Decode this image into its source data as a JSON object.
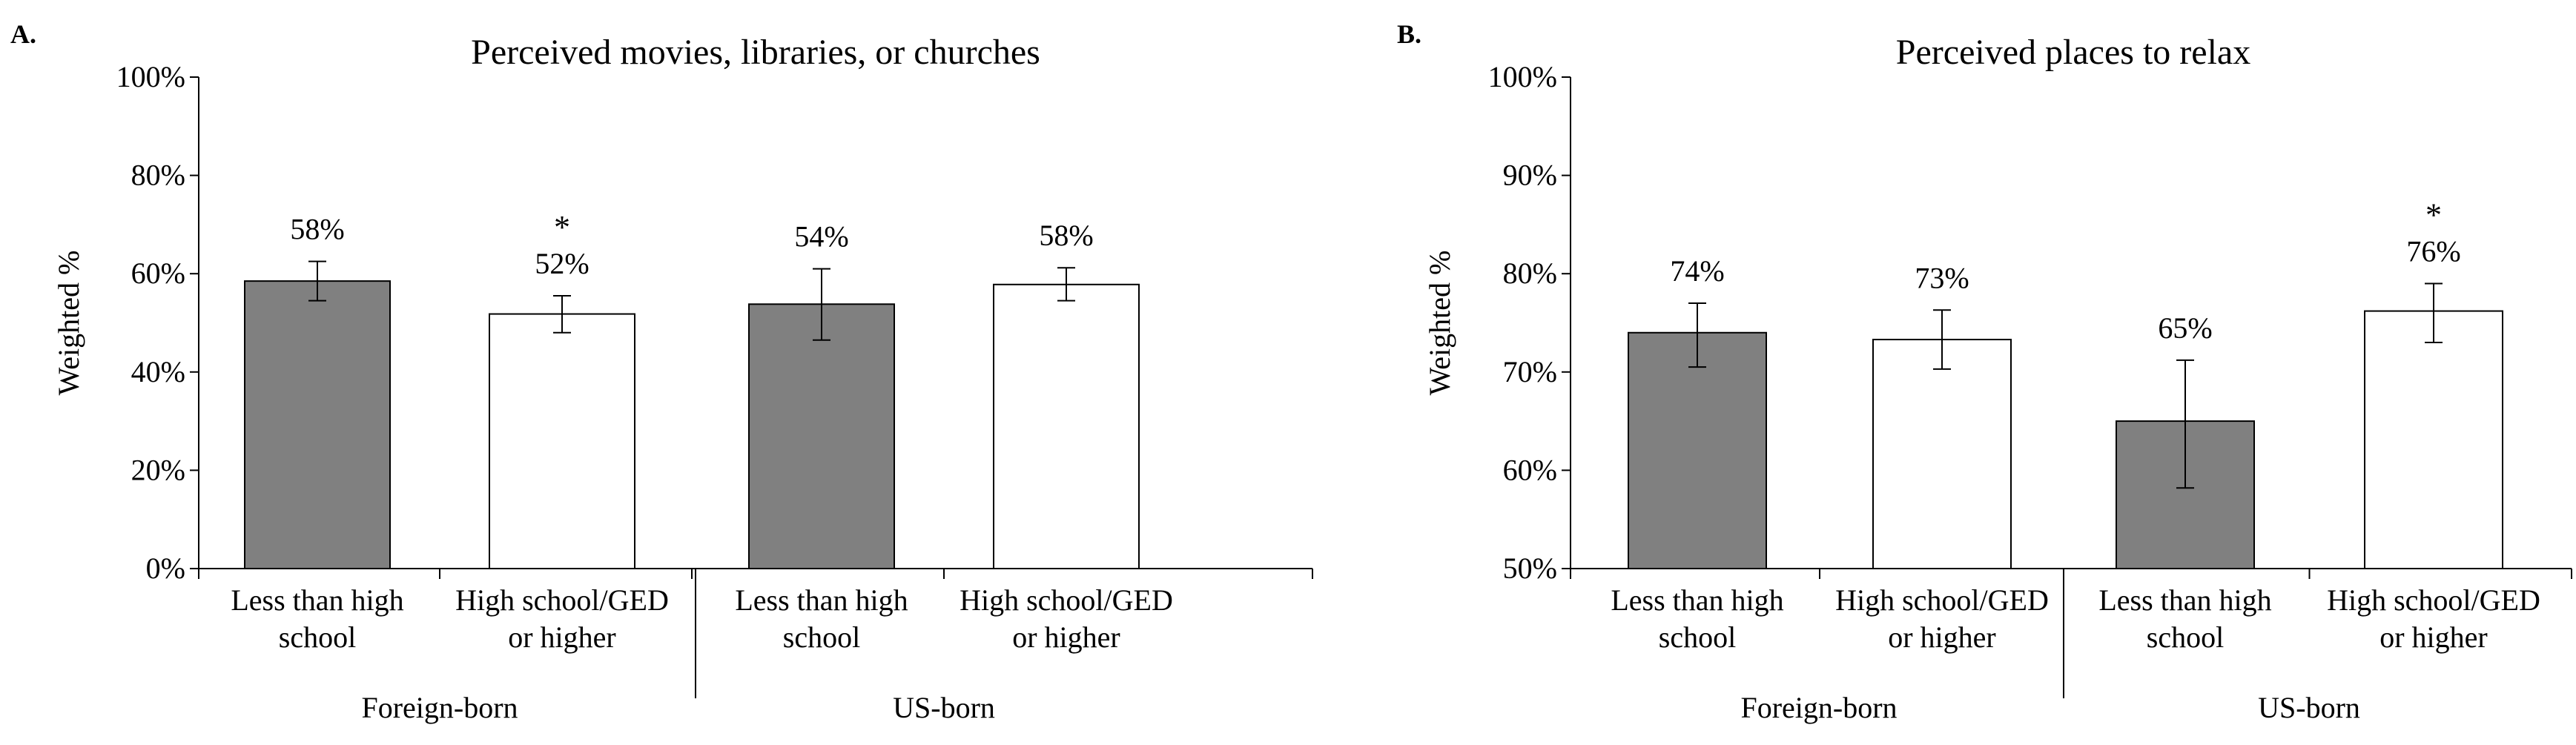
{
  "chart_data": [
    {
      "panel": "A.",
      "type": "bar",
      "title": "Perceived movies, libraries, or churches",
      "ylabel": "Weighted %",
      "ylim": [
        0,
        100
      ],
      "yticks": [
        0,
        20,
        40,
        60,
        80,
        100
      ],
      "ytick_labels": [
        "0%",
        "20%",
        "40%",
        "60%",
        "80%",
        "100%"
      ],
      "groups": [
        "Foreign-born",
        "US-born"
      ],
      "categories": [
        "Less than high school",
        "High school/GED or higher",
        "Less than high school",
        "High school/GED or higher"
      ],
      "category_lines": [
        [
          "Less than high",
          "school"
        ],
        [
          "High school/GED",
          "or higher"
        ],
        [
          "Less than high",
          "school"
        ],
        [
          "High school/GED",
          "or higher"
        ]
      ],
      "values": [
        58.5,
        51.8,
        53.8,
        57.8
      ],
      "error_low": [
        54.5,
        48.0,
        46.5,
        54.5
      ],
      "error_high": [
        62.5,
        55.5,
        61.0,
        61.2
      ],
      "value_labels": [
        "58%",
        "52%",
        "54%",
        "58%"
      ],
      "significance": [
        "",
        "*",
        "",
        ""
      ],
      "bar_fills": [
        "#808080",
        "#ffffff",
        "#808080",
        "#ffffff"
      ],
      "grid": false
    },
    {
      "panel": "B.",
      "type": "bar",
      "title": "Perceived places to relax",
      "ylabel": "Weighted %",
      "ylim": [
        50,
        100
      ],
      "yticks": [
        50,
        60,
        70,
        80,
        90,
        100
      ],
      "ytick_labels": [
        "50%",
        "60%",
        "70%",
        "80%",
        "90%",
        "100%"
      ],
      "groups": [
        "Foreign-born",
        "US-born"
      ],
      "categories": [
        "Less than high school",
        "High school/GED or higher",
        "Less than high school",
        "High school/GED or higher"
      ],
      "category_lines": [
        [
          "Less than high",
          "school"
        ],
        [
          "High school/GED",
          "or higher"
        ],
        [
          "Less than high",
          "school"
        ],
        [
          "High school/GED",
          "or higher"
        ]
      ],
      "values": [
        74.0,
        73.3,
        65.0,
        76.2
      ],
      "error_low": [
        70.5,
        70.3,
        58.2,
        73.0
      ],
      "error_high": [
        77.0,
        76.3,
        71.2,
        79.0
      ],
      "value_labels": [
        "74%",
        "73%",
        "65%",
        "76%"
      ],
      "significance": [
        "",
        "",
        "",
        "*"
      ],
      "bar_fills": [
        "#808080",
        "#ffffff",
        "#808080",
        "#ffffff"
      ],
      "grid": false
    }
  ]
}
